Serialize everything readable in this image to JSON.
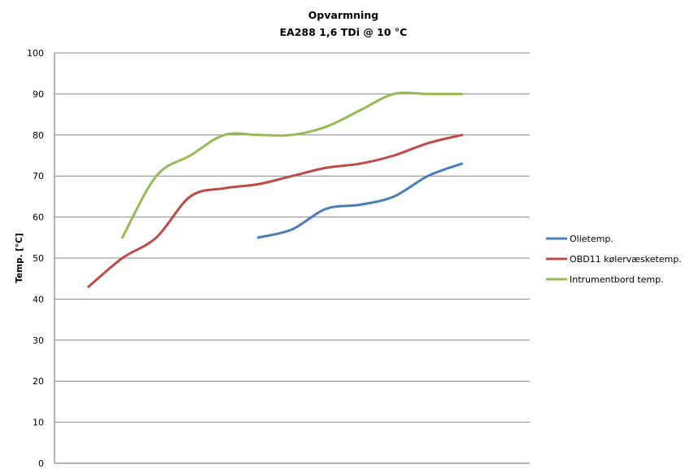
{
  "chart_data": {
    "type": "line",
    "title": "Opvarmning",
    "subtitle": "EA288 1,6 TDi @ 10 °C",
    "xlabel": "",
    "ylabel": "Temp. [°C]",
    "ylim": [
      0,
      100
    ],
    "yticks": [
      0,
      10,
      20,
      30,
      40,
      50,
      60,
      70,
      80,
      90,
      100
    ],
    "grid": true,
    "legend_position": "right",
    "x": [
      1,
      2,
      3,
      4,
      5,
      6,
      7,
      8,
      9,
      10,
      11,
      12
    ],
    "x_axis_slots": 14,
    "smooth": true,
    "series": [
      {
        "name": "Olietemp.",
        "color": "#4a7ebb",
        "values": [
          null,
          null,
          null,
          null,
          null,
          55,
          57,
          62,
          63,
          65,
          70,
          73
        ]
      },
      {
        "name": "OBD11 kølervæsketemp.",
        "color": "#be4b48",
        "values": [
          43,
          50,
          55,
          65,
          67,
          68,
          70,
          72,
          73,
          75,
          78,
          80
        ]
      },
      {
        "name": "Intrumentbord temp.",
        "color": "#98b954",
        "values": [
          null,
          55,
          70,
          75,
          80,
          80,
          80,
          82,
          86,
          90,
          90,
          90
        ]
      }
    ]
  },
  "colors": {
    "grid": "#868686",
    "axis": "#868686",
    "background": "#ffffff"
  }
}
